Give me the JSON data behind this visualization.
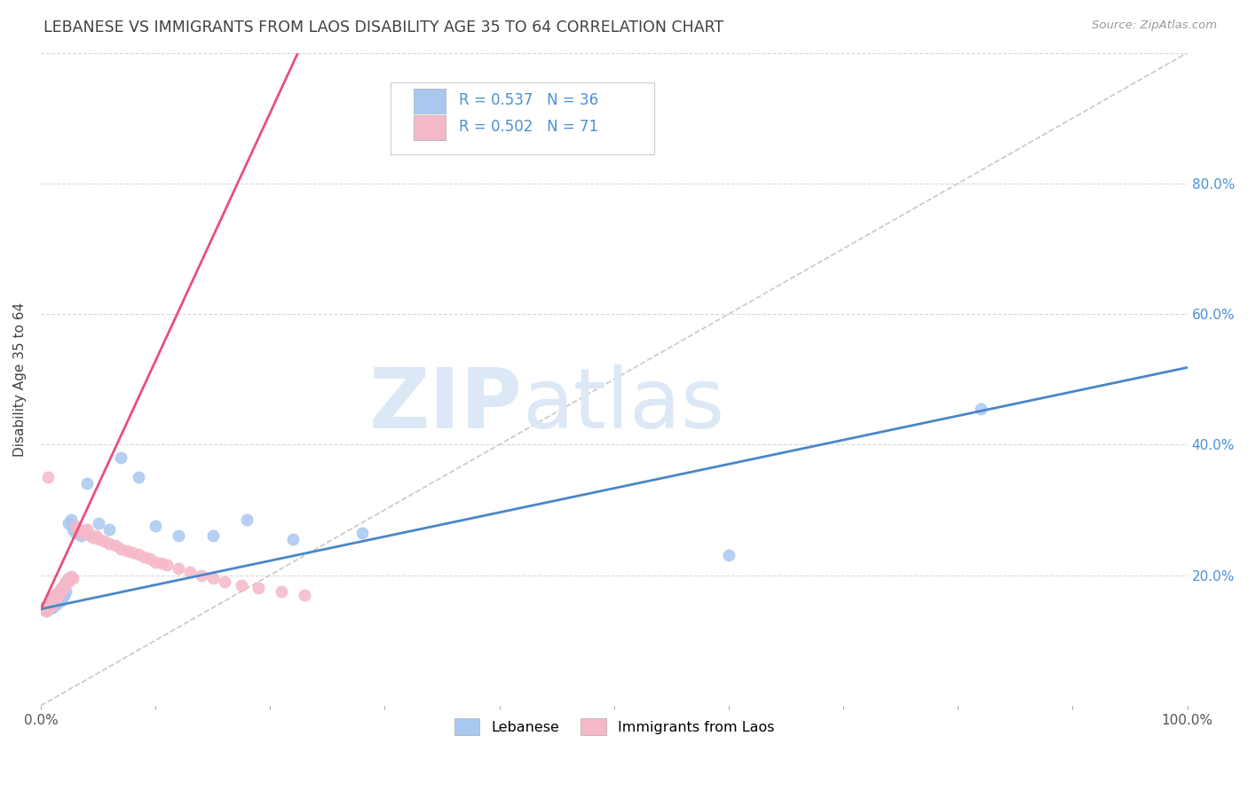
{
  "title": "LEBANESE VS IMMIGRANTS FROM LAOS DISABILITY AGE 35 TO 64 CORRELATION CHART",
  "source": "Source: ZipAtlas.com",
  "ylabel": "Disability Age 35 to 64",
  "xlim": [
    0.0,
    1.0
  ],
  "ylim": [
    0.0,
    1.0
  ],
  "xticks": [
    0.0,
    0.1,
    0.2,
    0.3,
    0.4,
    0.5,
    0.6,
    0.7,
    0.8,
    0.9,
    1.0
  ],
  "xticklabels": [
    "0.0%",
    "",
    "",
    "",
    "",
    "",
    "",
    "",
    "",
    "",
    "100.0%"
  ],
  "yticks_right": [
    0.0,
    0.2,
    0.4,
    0.6,
    0.8
  ],
  "yticklabels_right": [
    "",
    "20.0%",
    "40.0%",
    "60.0%",
    "80.0%"
  ],
  "grid_yticks": [
    0.2,
    0.4,
    0.6,
    0.8
  ],
  "blue_color": "#a8c8f0",
  "pink_color": "#f5b8c8",
  "blue_line_color": "#4a86c8",
  "pink_line_color": "#e8507a",
  "diagonal_color": "#c8c8c8",
  "background_color": "#ffffff",
  "grid_color": "#d8d8d8",
  "title_color": "#404040",
  "watermark_color": "#dce8f5",
  "watermark_text": "ZIPatlas",
  "legend_blue_label": "R = 0.537   N = 36",
  "legend_pink_label": "R = 0.502   N = 71",
  "bottom_legend_blue": "Lebanese",
  "bottom_legend_pink": "Immigrants from Laos",
  "blue_intercept": 0.148,
  "blue_slope": 0.37,
  "pink_intercept": 0.148,
  "pink_slope": 3.8,
  "blue_x": [
    0.003,
    0.005,
    0.006,
    0.007,
    0.008,
    0.009,
    0.01,
    0.011,
    0.012,
    0.013,
    0.014,
    0.015,
    0.016,
    0.017,
    0.018,
    0.019,
    0.02,
    0.022,
    0.024,
    0.026,
    0.028,
    0.03,
    0.035,
    0.04,
    0.05,
    0.06,
    0.07,
    0.085,
    0.1,
    0.12,
    0.15,
    0.18,
    0.22,
    0.28,
    0.6,
    0.82
  ],
  "blue_y": [
    0.148,
    0.145,
    0.15,
    0.148,
    0.152,
    0.155,
    0.15,
    0.158,
    0.16,
    0.155,
    0.162,
    0.165,
    0.168,
    0.16,
    0.165,
    0.17,
    0.168,
    0.175,
    0.28,
    0.285,
    0.27,
    0.265,
    0.26,
    0.34,
    0.28,
    0.27,
    0.38,
    0.35,
    0.275,
    0.26,
    0.26,
    0.285,
    0.255,
    0.265,
    0.23,
    0.455
  ],
  "pink_x": [
    0.002,
    0.003,
    0.004,
    0.005,
    0.006,
    0.006,
    0.007,
    0.007,
    0.008,
    0.008,
    0.009,
    0.009,
    0.01,
    0.01,
    0.011,
    0.011,
    0.012,
    0.012,
    0.013,
    0.013,
    0.014,
    0.014,
    0.015,
    0.015,
    0.016,
    0.016,
    0.017,
    0.017,
    0.018,
    0.018,
    0.019,
    0.019,
    0.02,
    0.02,
    0.021,
    0.022,
    0.023,
    0.024,
    0.025,
    0.026,
    0.028,
    0.03,
    0.032,
    0.035,
    0.038,
    0.04,
    0.042,
    0.045,
    0.048,
    0.05,
    0.055,
    0.06,
    0.065,
    0.07,
    0.075,
    0.08,
    0.085,
    0.09,
    0.095,
    0.1,
    0.105,
    0.11,
    0.12,
    0.13,
    0.14,
    0.15,
    0.16,
    0.175,
    0.19,
    0.21,
    0.23
  ],
  "pink_y": [
    0.148,
    0.15,
    0.152,
    0.145,
    0.35,
    0.148,
    0.15,
    0.155,
    0.152,
    0.155,
    0.158,
    0.16,
    0.155,
    0.162,
    0.16,
    0.165,
    0.162,
    0.168,
    0.165,
    0.17,
    0.168,
    0.172,
    0.17,
    0.168,
    0.175,
    0.172,
    0.178,
    0.175,
    0.18,
    0.178,
    0.182,
    0.18,
    0.185,
    0.182,
    0.188,
    0.19,
    0.188,
    0.195,
    0.192,
    0.198,
    0.195,
    0.275,
    0.272,
    0.265,
    0.268,
    0.27,
    0.262,
    0.258,
    0.26,
    0.255,
    0.252,
    0.248,
    0.245,
    0.24,
    0.238,
    0.235,
    0.232,
    0.228,
    0.225,
    0.22,
    0.218,
    0.215,
    0.21,
    0.205,
    0.2,
    0.195,
    0.19,
    0.185,
    0.18,
    0.175,
    0.17
  ]
}
